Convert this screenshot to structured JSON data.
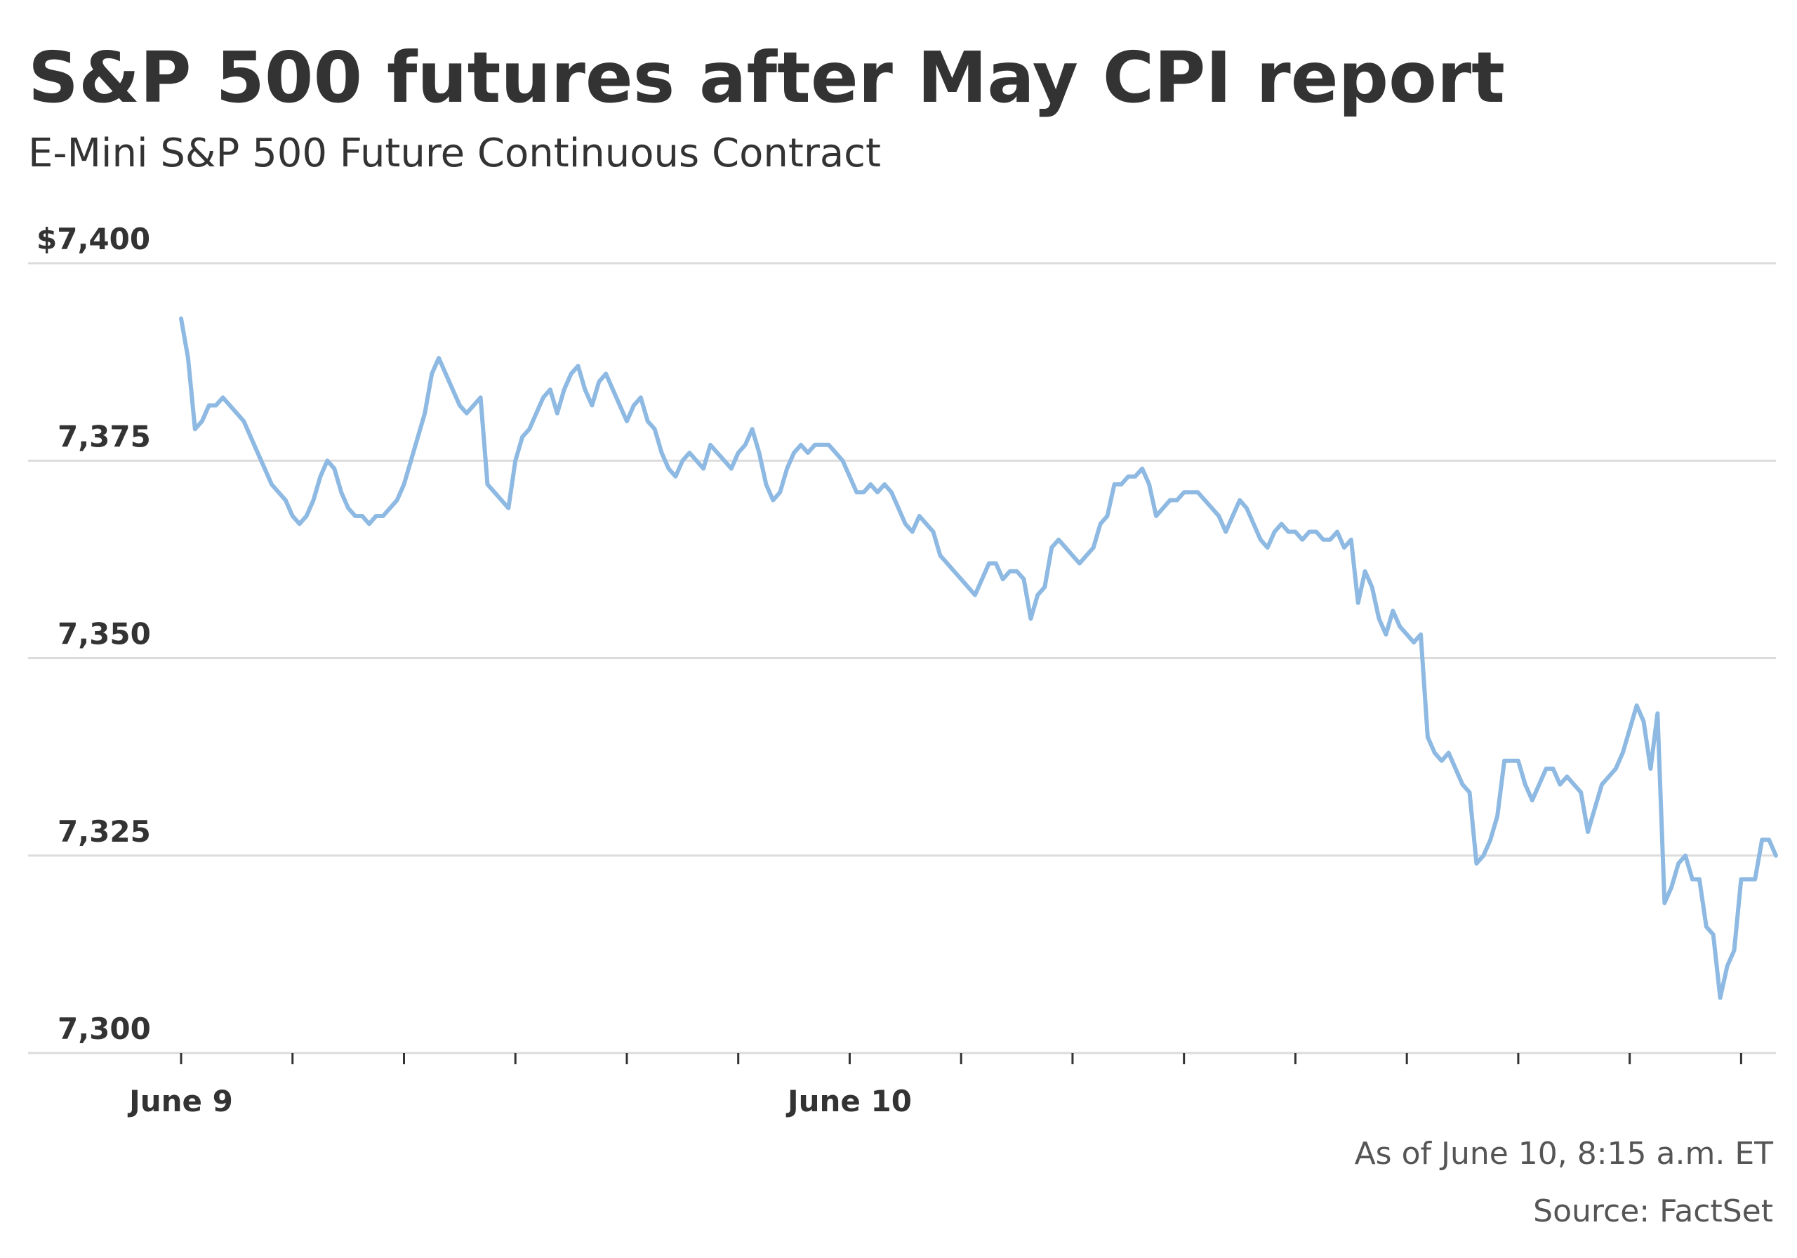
{
  "chart_data": {
    "type": "line",
    "title": "S&P 500 futures after May CPI report",
    "subtitle": "E-Mini S&P 500 Future Continuous Contract",
    "xlabel": "",
    "ylabel": "",
    "ylim": [
      7300,
      7400
    ],
    "y_ticks": [
      {
        "value": 7400,
        "label": "$7,400"
      },
      {
        "value": 7375,
        "label": "7,375"
      },
      {
        "value": 7350,
        "label": "7,350"
      },
      {
        "value": 7325,
        "label": "7,325"
      },
      {
        "value": 7300,
        "label": "7,300"
      }
    ],
    "x_labels": [
      {
        "index": 0,
        "label": "June 9"
      },
      {
        "index": 96,
        "label": "June 10"
      }
    ],
    "minor_tick_every": 16,
    "grid": true,
    "color": "#8db9e2",
    "series": [
      {
        "values": [
          7393,
          7388,
          7379,
          7380,
          7382,
          7382,
          7383,
          7382,
          7381,
          7380,
          7378,
          7376,
          7374,
          7372,
          7371,
          7370,
          7368,
          7367,
          7368,
          7370,
          7373,
          7375,
          7374,
          7371,
          7369,
          7368,
          7368,
          7367,
          7368,
          7368,
          7369,
          7370,
          7372,
          7375,
          7378,
          7381,
          7386,
          7388,
          7386,
          7384,
          7382,
          7381,
          7382,
          7383,
          7372,
          7371,
          7370,
          7369,
          7375,
          7378,
          7379,
          7381,
          7383,
          7384,
          7381,
          7384,
          7386,
          7387,
          7384,
          7382,
          7385,
          7386,
          7384,
          7382,
          7380,
          7382,
          7383,
          7380,
          7379,
          7376,
          7374,
          7373,
          7375,
          7376,
          7375,
          7374,
          7377,
          7376,
          7375,
          7374,
          7376,
          7377,
          7379,
          7376,
          7372,
          7370,
          7371,
          7374,
          7376,
          7377,
          7376,
          7377,
          7377,
          7377,
          7376,
          7375,
          7373,
          7371,
          7371,
          7372,
          7371,
          7372,
          7371,
          7369,
          7367,
          7366,
          7368,
          7367,
          7366,
          7363,
          7362,
          7361,
          7360,
          7359,
          7358,
          7360,
          7362,
          7362,
          7360,
          7361,
          7361,
          7360,
          7355,
          7358,
          7359,
          7364,
          7365,
          7364,
          7363,
          7362,
          7363,
          7364,
          7367,
          7368,
          7372,
          7372,
          7373,
          7373,
          7374,
          7372,
          7368,
          7369,
          7370,
          7370,
          7371,
          7371,
          7371,
          7370,
          7369,
          7368,
          7366,
          7368,
          7370,
          7369,
          7367,
          7365,
          7364,
          7366,
          7367,
          7366,
          7366,
          7365,
          7366,
          7366,
          7365,
          7365,
          7366,
          7364,
          7365,
          7357,
          7361,
          7359,
          7355,
          7353,
          7356,
          7354,
          7353,
          7352,
          7353,
          7340,
          7338,
          7337,
          7338,
          7336,
          7334,
          7333,
          7324,
          7325,
          7327,
          7330,
          7337,
          7337,
          7337,
          7334,
          7332,
          7334,
          7336,
          7336,
          7334,
          7335,
          7334,
          7333,
          7328,
          7331,
          7334,
          7335,
          7336,
          7338,
          7341,
          7344,
          7342,
          7336,
          7343,
          7319,
          7321,
          7324,
          7325,
          7322,
          7322,
          7316,
          7315,
          7307,
          7311,
          7313,
          7322,
          7322,
          7322,
          7327,
          7327,
          7325
        ]
      }
    ]
  },
  "footnotes": {
    "as_of": "As of June 10, 8:15 a.m. ET",
    "source": "Source: FactSet"
  }
}
